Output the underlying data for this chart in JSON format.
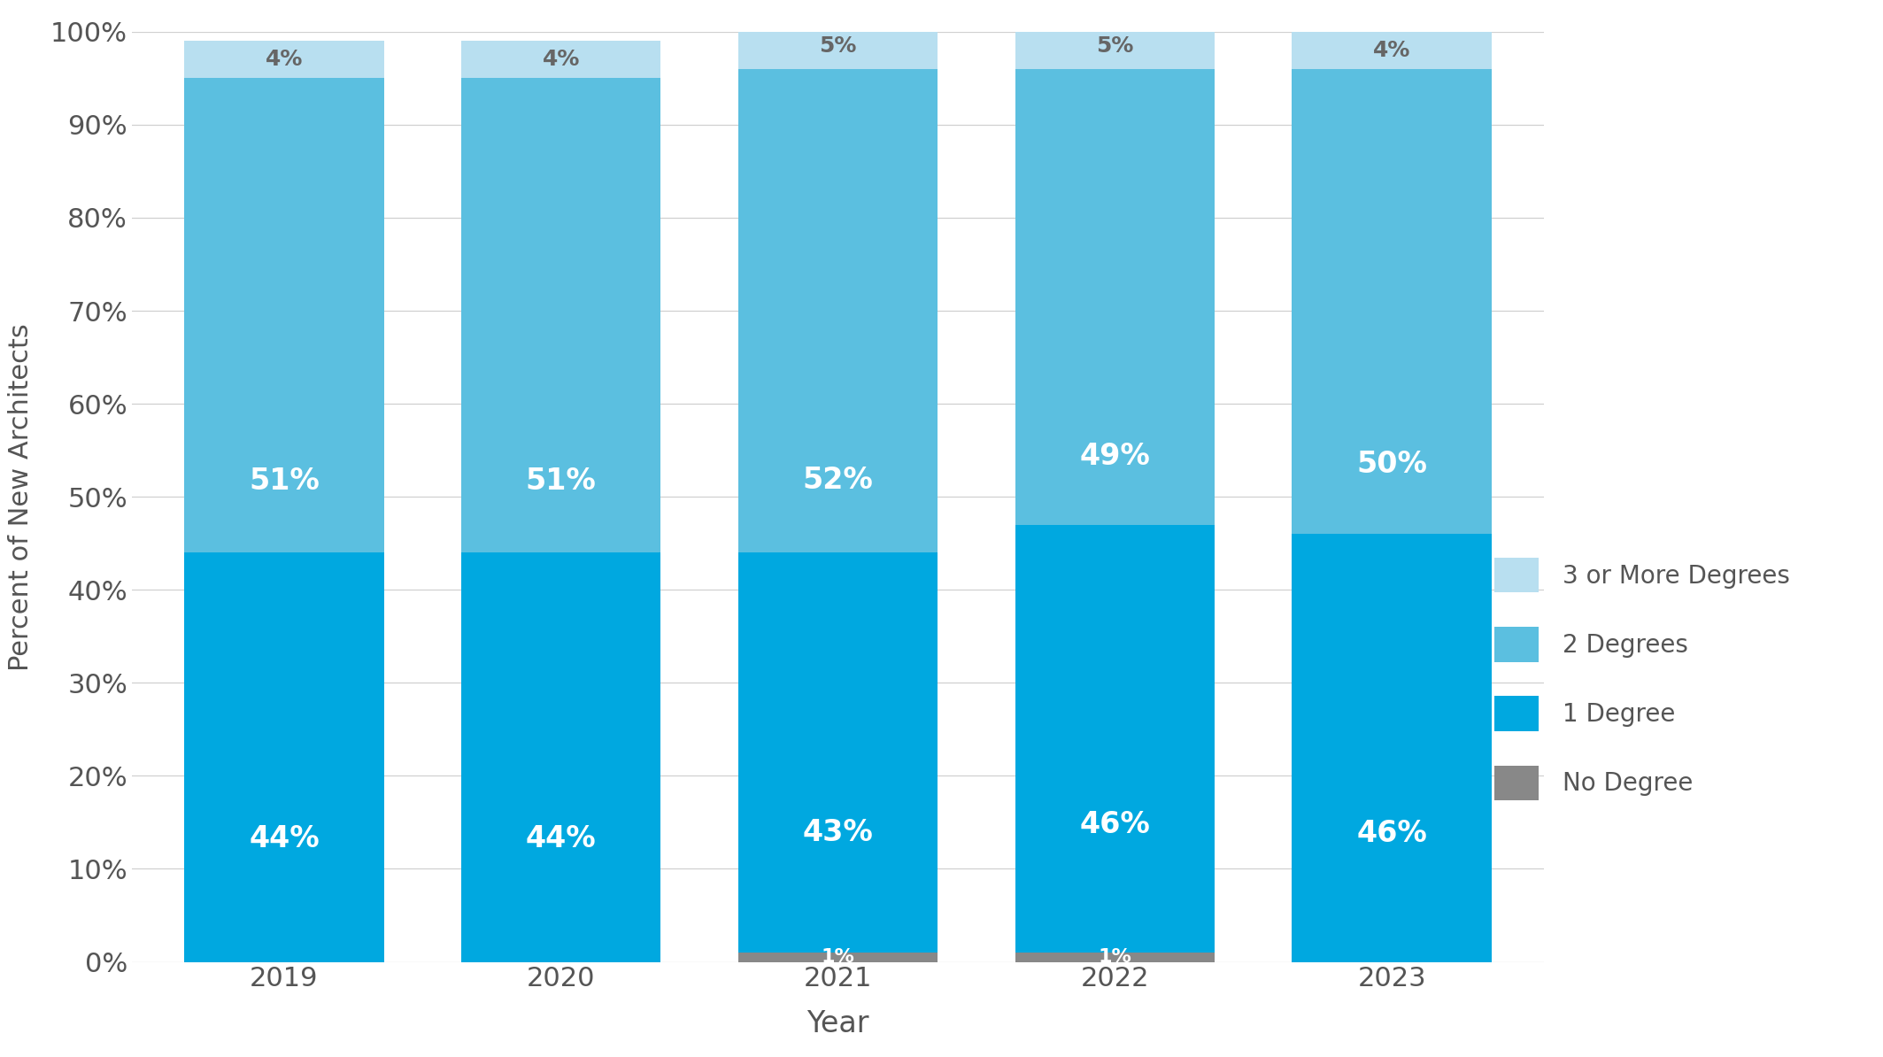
{
  "years": [
    "2019",
    "2020",
    "2021",
    "2022",
    "2023"
  ],
  "no_degree": [
    0,
    0,
    1,
    1,
    0
  ],
  "one_degree": [
    44,
    44,
    43,
    46,
    46
  ],
  "two_degrees": [
    51,
    51,
    52,
    49,
    50
  ],
  "three_plus": [
    4,
    4,
    5,
    5,
    4
  ],
  "color_no_degree": "#888888",
  "color_one_degree": "#00a8e0",
  "color_two_degrees": "#5bbfe0",
  "color_three_plus": "#b8dff0",
  "label_no_degree": "No Degree",
  "label_one_degree": "1 Degree",
  "label_two_degrees": "2 Degrees",
  "label_three_plus": "3 or More Degrees",
  "xlabel": "Year",
  "ylabel": "Percent of New Architects",
  "ylim": [
    0,
    100
  ],
  "bar_width": 0.72,
  "background_color": "#ffffff",
  "grid_color": "#d0d0d0",
  "label_color_white": "#ffffff",
  "label_color_dark": "#666666"
}
